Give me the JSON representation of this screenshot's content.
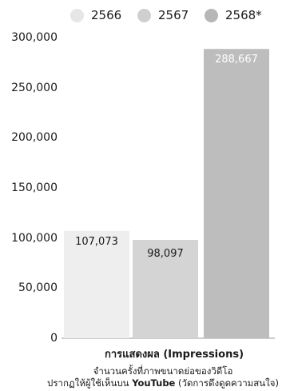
{
  "chart_data": {
    "type": "bar",
    "categories": [
      "2566",
      "2567",
      "2568*"
    ],
    "values": [
      107073,
      98097,
      288667
    ],
    "value_labels": [
      "107,073",
      "98,097",
      "288,667"
    ],
    "colors": [
      "#eeeeee",
      "#d4d4d4",
      "#bdbdbd"
    ],
    "legend": [
      {
        "label": "2566",
        "color": "#e6e6e6"
      },
      {
        "label": "2567",
        "color": "#cfcfcf"
      },
      {
        "label": "2568*",
        "color": "#b7b7b7"
      }
    ],
    "legend_position": "top",
    "ylim": [
      0,
      300000
    ],
    "yticks": [
      "0",
      "50,000",
      "100,000",
      "150,000",
      "200,000",
      "250,000",
      "300,000"
    ],
    "ytick_values": [
      0,
      50000,
      100000,
      150000,
      200000,
      250000,
      300000
    ],
    "grid": false,
    "xlabel": "การแสดงผล (Impressions)",
    "caption_line1": "จำนวนครั้งที่ภาพขนาดย่อของวิดีโอ",
    "caption_line2_prefix": "ปรากฏให้ผู้ใช้เห็นบน ",
    "caption_line2_bold": "YouTube",
    "caption_line2_suffix": " (วัดการดึงดูดความสนใจ)"
  }
}
